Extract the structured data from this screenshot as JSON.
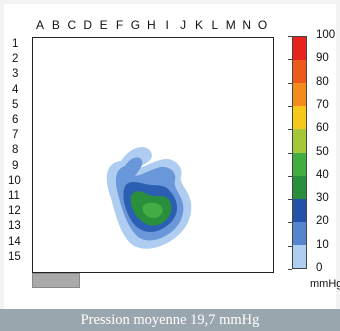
{
  "columns": [
    "A",
    "B",
    "C",
    "D",
    "E",
    "F",
    "G",
    "H",
    "I",
    "J",
    "K",
    "L",
    "M",
    "N",
    "O"
  ],
  "rows": [
    "1",
    "2",
    "3",
    "4",
    "5",
    "6",
    "7",
    "8",
    "9",
    "10",
    "11",
    "12",
    "13",
    "14",
    "15"
  ],
  "scale": {
    "labels": [
      "100",
      "90",
      "80",
      "70",
      "60",
      "50",
      "40",
      "30",
      "20",
      "10",
      "0"
    ],
    "unit": "mmHg",
    "colors": [
      "#e8231d",
      "#ee5a1e",
      "#f48b1e",
      "#f6c81c",
      "#a5c83a",
      "#43ad43",
      "#2a8f3c",
      "#2452a8",
      "#5585cf",
      "#aecdf0",
      "#f8f8f8"
    ]
  },
  "caption": "Pression moyenne 19,7 mmHg",
  "pressure_map_colors": {
    "band_10": "#aecdf0",
    "band_20": "#5f8fd6",
    "band_30": "#2c5fb2",
    "band_40": "#2a8f3c",
    "band_50": "#43ad43"
  }
}
